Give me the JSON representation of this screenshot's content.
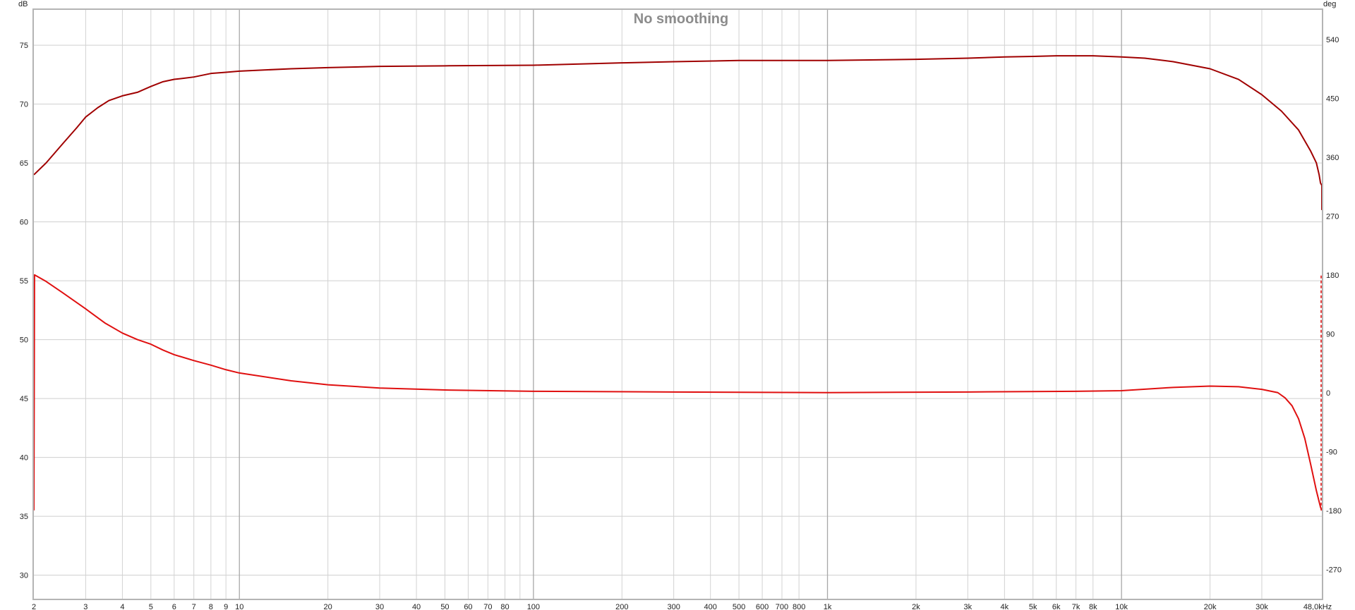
{
  "chart_data": {
    "type": "line",
    "title": "No smoothing",
    "x_scale": "log",
    "xlim": [
      2,
      48000
    ],
    "x_ticks": [
      {
        "value": 2,
        "label": "2"
      },
      {
        "value": 3,
        "label": "3"
      },
      {
        "value": 4,
        "label": "4"
      },
      {
        "value": 5,
        "label": "5"
      },
      {
        "value": 6,
        "label": "6"
      },
      {
        "value": 7,
        "label": "7"
      },
      {
        "value": 8,
        "label": "8"
      },
      {
        "value": 9,
        "label": "9"
      },
      {
        "value": 10,
        "label": "10"
      },
      {
        "value": 20,
        "label": "20"
      },
      {
        "value": 30,
        "label": "30"
      },
      {
        "value": 40,
        "label": "40"
      },
      {
        "value": 50,
        "label": "50"
      },
      {
        "value": 60,
        "label": "60"
      },
      {
        "value": 70,
        "label": "70"
      },
      {
        "value": 80,
        "label": "80"
      },
      {
        "value": 100,
        "label": "100"
      },
      {
        "value": 200,
        "label": "200"
      },
      {
        "value": 300,
        "label": "300"
      },
      {
        "value": 400,
        "label": "400"
      },
      {
        "value": 500,
        "label": "500"
      },
      {
        "value": 600,
        "label": "600"
      },
      {
        "value": 700,
        "label": "700"
      },
      {
        "value": 800,
        "label": "800"
      },
      {
        "value": 1000,
        "label": "1k"
      },
      {
        "value": 2000,
        "label": "2k"
      },
      {
        "value": 3000,
        "label": "3k"
      },
      {
        "value": 4000,
        "label": "4k"
      },
      {
        "value": 5000,
        "label": "5k"
      },
      {
        "value": 6000,
        "label": "6k"
      },
      {
        "value": 7000,
        "label": "7k"
      },
      {
        "value": 8000,
        "label": "8k"
      },
      {
        "value": 10000,
        "label": "10k"
      },
      {
        "value": 20000,
        "label": "20k"
      },
      {
        "value": 30000,
        "label": "30k"
      },
      {
        "value": 48000,
        "label": "48,0kHz"
      }
    ],
    "x_minor_gridlines": [
      90
    ],
    "x_major_gridlines": [
      10,
      100,
      1000,
      10000
    ],
    "y_left": {
      "unit": "dB",
      "range": [
        28,
        78
      ],
      "ticks": [
        30,
        35,
        40,
        45,
        50,
        55,
        60,
        65,
        70,
        75
      ]
    },
    "y_right": {
      "unit": "deg",
      "range": [
        -315,
        585
      ],
      "ticks": [
        {
          "value": -270,
          "label": "-270"
        },
        {
          "value": -180,
          "label": "-180"
        },
        {
          "value": -90,
          "label": "-90"
        },
        {
          "value": 0,
          "label": "0"
        },
        {
          "value": 90,
          "label": "90"
        },
        {
          "value": 180,
          "label": "180"
        },
        {
          "value": 270,
          "label": "270"
        },
        {
          "value": 360,
          "label": "360"
        },
        {
          "value": 450,
          "label": "450"
        },
        {
          "value": 540,
          "label": "540"
        }
      ]
    },
    "grid": true,
    "series": [
      {
        "axis": "left",
        "color": "#a00000",
        "points": [
          [
            2,
            64.0
          ],
          [
            2.2,
            65.0
          ],
          [
            2.5,
            66.6
          ],
          [
            2.8,
            68.0
          ],
          [
            3,
            68.9
          ],
          [
            3.3,
            69.7
          ],
          [
            3.6,
            70.3
          ],
          [
            4,
            70.7
          ],
          [
            4.5,
            71.0
          ],
          [
            5,
            71.5
          ],
          [
            5.5,
            71.9
          ],
          [
            6,
            72.1
          ],
          [
            6.5,
            72.2
          ],
          [
            7,
            72.3
          ],
          [
            8,
            72.6
          ],
          [
            9,
            72.7
          ],
          [
            10,
            72.8
          ],
          [
            15,
            73.0
          ],
          [
            20,
            73.1
          ],
          [
            30,
            73.2
          ],
          [
            50,
            73.25
          ],
          [
            100,
            73.3
          ],
          [
            200,
            73.5
          ],
          [
            300,
            73.6
          ],
          [
            500,
            73.7
          ],
          [
            1000,
            73.7
          ],
          [
            2000,
            73.8
          ],
          [
            3000,
            73.9
          ],
          [
            4000,
            74.0
          ],
          [
            5000,
            74.05
          ],
          [
            6000,
            74.1
          ],
          [
            7000,
            74.1
          ],
          [
            8000,
            74.1
          ],
          [
            10000,
            74.0
          ],
          [
            12000,
            73.9
          ],
          [
            15000,
            73.6
          ],
          [
            20000,
            73.0
          ],
          [
            25000,
            72.1
          ],
          [
            30000,
            70.8
          ],
          [
            35000,
            69.4
          ],
          [
            40000,
            67.8
          ],
          [
            44000,
            66.0
          ],
          [
            46000,
            65.0
          ],
          [
            47000,
            64.0
          ],
          [
            47500,
            63.3
          ],
          [
            48000,
            63.1
          ],
          [
            48000,
            61.0
          ]
        ]
      },
      {
        "axis": "right",
        "color": "#e01010",
        "points": [
          [
            2,
            -180
          ],
          [
            2.01,
            180
          ],
          [
            2.2,
            170
          ],
          [
            2.5,
            153
          ],
          [
            3,
            128
          ],
          [
            3.5,
            106
          ],
          [
            4,
            91
          ],
          [
            4.5,
            81
          ],
          [
            5,
            74
          ],
          [
            5.5,
            65
          ],
          [
            6,
            58
          ],
          [
            7,
            49
          ],
          [
            8,
            42
          ],
          [
            9,
            35
          ],
          [
            10,
            30
          ],
          [
            15,
            18
          ],
          [
            20,
            12
          ],
          [
            30,
            7
          ],
          [
            50,
            4
          ],
          [
            100,
            2
          ],
          [
            300,
            1
          ],
          [
            1000,
            0
          ],
          [
            3000,
            1
          ],
          [
            7000,
            2
          ],
          [
            10000,
            3
          ],
          [
            15000,
            8
          ],
          [
            20000,
            10
          ],
          [
            25000,
            9
          ],
          [
            30000,
            5
          ],
          [
            34000,
            0
          ],
          [
            36000,
            -8
          ],
          [
            38000,
            -20
          ],
          [
            40000,
            -40
          ],
          [
            42000,
            -70
          ],
          [
            44000,
            -110
          ],
          [
            46000,
            -150
          ],
          [
            47500,
            -175
          ],
          [
            48000,
            -180
          ]
        ],
        "wrap_segment": {
          "x": 48000,
          "from": -180,
          "to": 180,
          "style": "dashed"
        }
      }
    ]
  }
}
